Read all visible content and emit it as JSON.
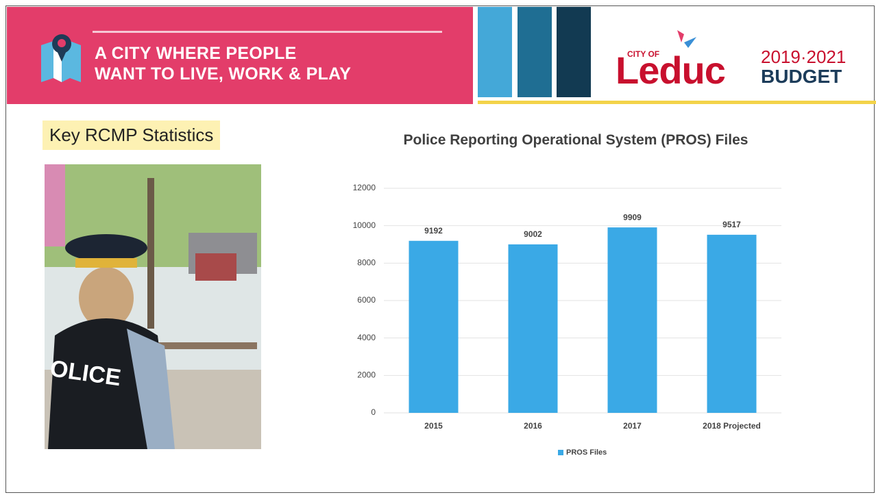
{
  "header": {
    "tagline_line1": "A CITY WHERE PEOPLE",
    "tagline_line2": "WANT TO LIVE, WORK & PLAY",
    "city_of": "CITY OF",
    "city_name": "Leduc",
    "budget_years": "2019·2021",
    "budget_label": "BUDGET"
  },
  "section_title": "Key RCMP Statistics",
  "chart_data": {
    "type": "bar",
    "title": "Police Reporting Operational System (PROS) Files",
    "categories": [
      "2015",
      "2016",
      "2017",
      "2018 Projected"
    ],
    "series": [
      {
        "name": "PROS Files",
        "color": "#3aa9e6",
        "values": [
          9192,
          9002,
          9909,
          9517
        ]
      }
    ],
    "ylim": [
      0,
      12000
    ],
    "yticks": [
      0,
      2000,
      4000,
      6000,
      8000,
      10000,
      12000
    ],
    "grid": true,
    "legend": "bottom"
  }
}
